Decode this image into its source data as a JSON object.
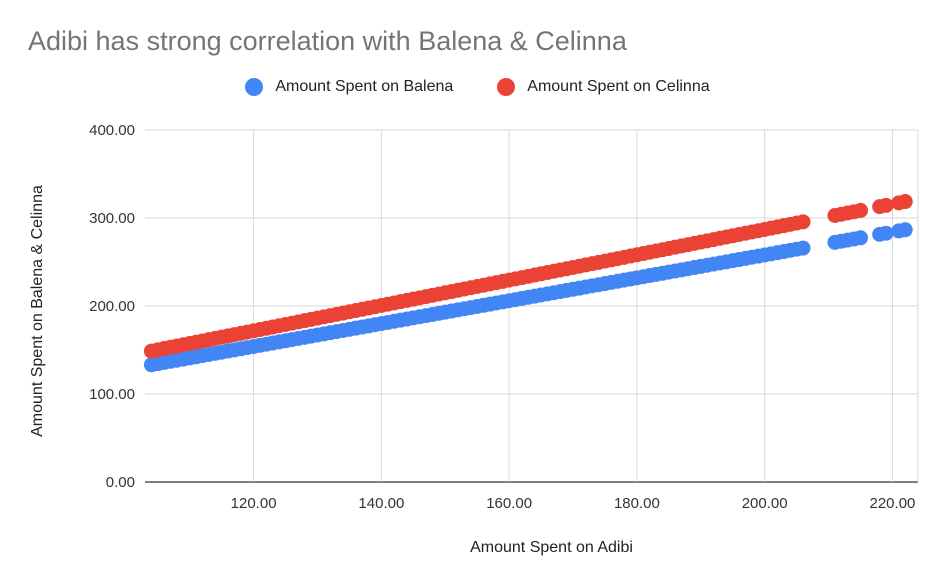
{
  "chart_data": {
    "type": "scatter",
    "title": "Adibi has strong correlation with Balena & Celinna",
    "xlabel": "Amount Spent on Adibi",
    "ylabel": "Amount Spent on Balena & Celinna",
    "xlim": [
      103,
      224
    ],
    "ylim": [
      0,
      400
    ],
    "x_ticks": [
      "120.00",
      "140.00",
      "160.00",
      "180.00",
      "200.00",
      "220.00"
    ],
    "y_ticks": [
      "0.00",
      "100.00",
      "200.00",
      "300.00",
      "400.00"
    ],
    "grid": true,
    "legend_position": "top",
    "series": [
      {
        "name": "Amount Spent on Balena",
        "color": "#4285f4",
        "x_range": [
          104,
          206
        ],
        "x_extra": [
          211,
          212,
          213,
          214,
          215,
          218,
          219,
          221,
          222
        ],
        "slope": 1.3,
        "intercept": -2
      },
      {
        "name": "Amount Spent on Celinna",
        "color": "#ea4335",
        "x_range": [
          104,
          206
        ],
        "x_extra": [
          211,
          212,
          213,
          214,
          215,
          218,
          219,
          221,
          222
        ],
        "slope": 1.44,
        "intercept": -1
      }
    ]
  }
}
